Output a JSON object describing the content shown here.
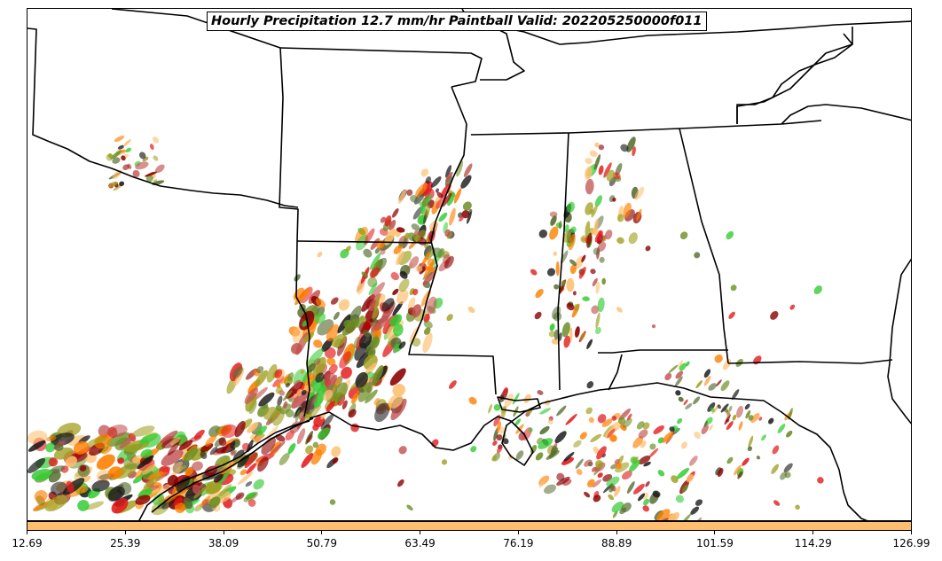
{
  "title": "Hourly Precipitation 12.7 mm/hr Paintball Valid: 202205250000f011",
  "colorbar": {
    "color": "#fdbf6f",
    "tick_labels": [
      "12.69",
      "25.39",
      "38.09",
      "50.79",
      "63.49",
      "76.19",
      "88.89",
      "101.59",
      "114.29",
      "126.99"
    ]
  },
  "map": {
    "region": "South-central and southeastern United States with Gulf of Mexico coast",
    "boundary_color": "#000000",
    "paintball_colors": [
      "#e31a1c",
      "#ff7f00",
      "#fdbf6f",
      "#33cc33",
      "#1a1a1a",
      "#8b0000",
      "#556b2f",
      "#a0a020",
      "#c0504d",
      "#6b8e23"
    ]
  }
}
